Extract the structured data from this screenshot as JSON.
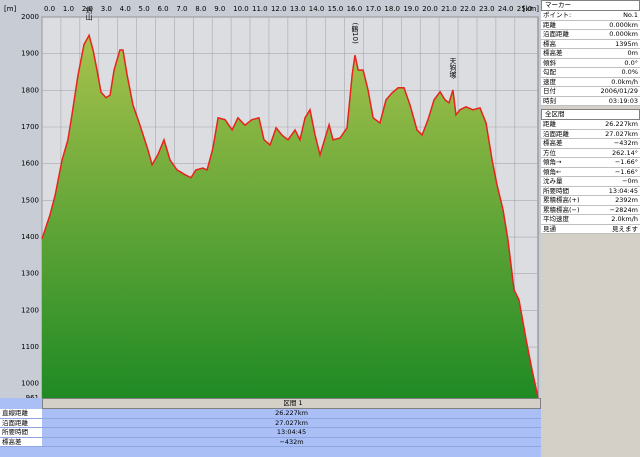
{
  "chart_data": {
    "type": "area",
    "x_label": "[km]",
    "y_label": "[m]",
    "x": [
      0,
      0.42,
      0.7,
      1.06,
      1.37,
      1.59,
      1.9,
      2.22,
      2.49,
      2.7,
      2.91,
      3.12,
      3.38,
      3.6,
      3.81,
      4.12,
      4.28,
      4.5,
      4.81,
      5.18,
      5.6,
      5.82,
      6.13,
      6.45,
      6.77,
      7.14,
      7.56,
      7.88,
      8.14,
      8.51,
      8.73,
      9.04,
      9.31,
      9.68,
      10.05,
      10.36,
      10.73,
      11.1,
      11.47,
      11.74,
      12.06,
      12.38,
      12.69,
      13.01,
      13.38,
      13.64,
      13.91,
      14.17,
      14.44,
      14.7,
      14.97,
      15.18,
      15.39,
      15.76,
      16.13,
      16.4,
      16.55,
      16.72,
      16.98,
      17.24,
      17.51,
      17.87,
      18.19,
      18.51,
      18.83,
      19.14,
      19.46,
      19.83,
      20.1,
      20.41,
      20.73,
      21.05,
      21.31,
      21.52,
      21.73,
      21.89,
      22.1,
      22.42,
      22.79,
      23.16,
      23.48,
      23.8,
      24.06,
      24.38,
      24.64,
      24.96,
      25.22,
      25.6,
      25.91,
      26.227
    ],
    "values": [
      1395,
      1460,
      1515,
      1610,
      1665,
      1735,
      1840,
      1925,
      1950,
      1910,
      1855,
      1795,
      1780,
      1787,
      1855,
      1910,
      1910,
      1842,
      1760,
      1705,
      1638,
      1597,
      1625,
      1665,
      1610,
      1583,
      1570,
      1562,
      1583,
      1588,
      1583,
      1643,
      1725,
      1720,
      1692,
      1725,
      1705,
      1720,
      1725,
      1665,
      1651,
      1698,
      1678,
      1665,
      1692,
      1665,
      1725,
      1747,
      1678,
      1624,
      1670,
      1706,
      1665,
      1670,
      1698,
      1842,
      1896,
      1855,
      1855,
      1801,
      1725,
      1711,
      1774,
      1793,
      1807,
      1807,
      1760,
      1692,
      1678,
      1720,
      1774,
      1796,
      1774,
      1766,
      1801,
      1733,
      1747,
      1755,
      1747,
      1752,
      1711,
      1610,
      1542,
      1474,
      1392,
      1256,
      1229,
      1120,
      1038,
      963
    ],
    "color": "#e8231c",
    "fill_top": "#a8c24c",
    "fill_bottom": "#1f8a24",
    "grid": true,
    "xlim": [
      0,
      26.227
    ],
    "ylim": [
      961,
      2000
    ],
    "xticks": [
      {
        "value": 0,
        "label": "0.0"
      },
      {
        "value": 1,
        "label": "1.0"
      },
      {
        "value": 2,
        "label": "2.0"
      },
      {
        "value": 3,
        "label": "3.0"
      },
      {
        "value": 4,
        "label": "4.0"
      },
      {
        "value": 5,
        "label": "5.0"
      },
      {
        "value": 6,
        "label": "6.0"
      },
      {
        "value": 7,
        "label": "7.0"
      },
      {
        "value": 8,
        "label": "8.0"
      },
      {
        "value": 9,
        "label": "9.0"
      },
      {
        "value": 10,
        "label": "10.0"
      },
      {
        "value": 11,
        "label": "11.0"
      },
      {
        "value": 12,
        "label": "12.0"
      },
      {
        "value": 13,
        "label": "13.0"
      },
      {
        "value": 14,
        "label": "14.0"
      },
      {
        "value": 15,
        "label": "15.0"
      },
      {
        "value": 16,
        "label": "16.0"
      },
      {
        "value": 17,
        "label": "17.0"
      },
      {
        "value": 18,
        "label": "18.0"
      },
      {
        "value": 19,
        "label": "19.0"
      },
      {
        "value": 20,
        "label": "20.0"
      },
      {
        "value": 21,
        "label": "21.0"
      },
      {
        "value": 22,
        "label": "22.0"
      },
      {
        "value": 23,
        "label": "23.0"
      },
      {
        "value": 24,
        "label": "24.0"
      },
      {
        "value": 25,
        "label": "25.0"
      }
    ],
    "yticks": [
      961,
      1000,
      1100,
      1200,
      1300,
      1400,
      1500,
      1600,
      1700,
      1800,
      1900,
      2000
    ],
    "annotations": [
      {
        "text": "剣山",
        "x": 2.49,
        "y": 1950
      },
      {
        "text": "(鶴10)",
        "x": 16.55,
        "y": 1896
      },
      {
        "text": "天狗塚",
        "x": 21.73,
        "y": 1801
      }
    ]
  },
  "section": {
    "title": "区間 1",
    "rows": [
      [
        "直線距離",
        "26.227km"
      ],
      [
        "沿面距離",
        "27.027km"
      ],
      [
        "所要時間",
        "13:04:45"
      ],
      [
        "標高差",
        "−432m"
      ]
    ]
  },
  "marker": {
    "title": "マーカー",
    "rows": [
      [
        "ポイント:",
        "No.1"
      ],
      [
        "距離",
        "0.000km"
      ],
      [
        "沿面距離",
        "0.000km"
      ],
      [
        "標高",
        "1395m"
      ],
      [
        "標高差",
        "0m"
      ],
      [
        "傾斜",
        "0.0°"
      ],
      [
        "勾配",
        "0.0%"
      ],
      [
        "速度",
        "0.0km/h"
      ],
      [
        "日付",
        "2006/01/29"
      ],
      [
        "時刻",
        "03:19:03"
      ]
    ]
  },
  "total": {
    "title": "全区間",
    "rows": [
      [
        "距離",
        "26.227km"
      ],
      [
        "沿面距離",
        "27.027km"
      ],
      [
        "標高差",
        "−432m"
      ],
      [
        "方位",
        "262.14°"
      ],
      [
        "傾角→",
        "−1.66°"
      ],
      [
        "傾角←",
        "−1.66°"
      ],
      [
        "沈み量",
        "−0m"
      ],
      [
        "所要時間",
        "13:04:45"
      ],
      [
        "累積標高(+)",
        "2392m"
      ],
      [
        "累積標高(−)",
        "−2824m"
      ],
      [
        "平均速度",
        "2.0km/h"
      ],
      [
        "見通",
        "見えます"
      ]
    ]
  }
}
